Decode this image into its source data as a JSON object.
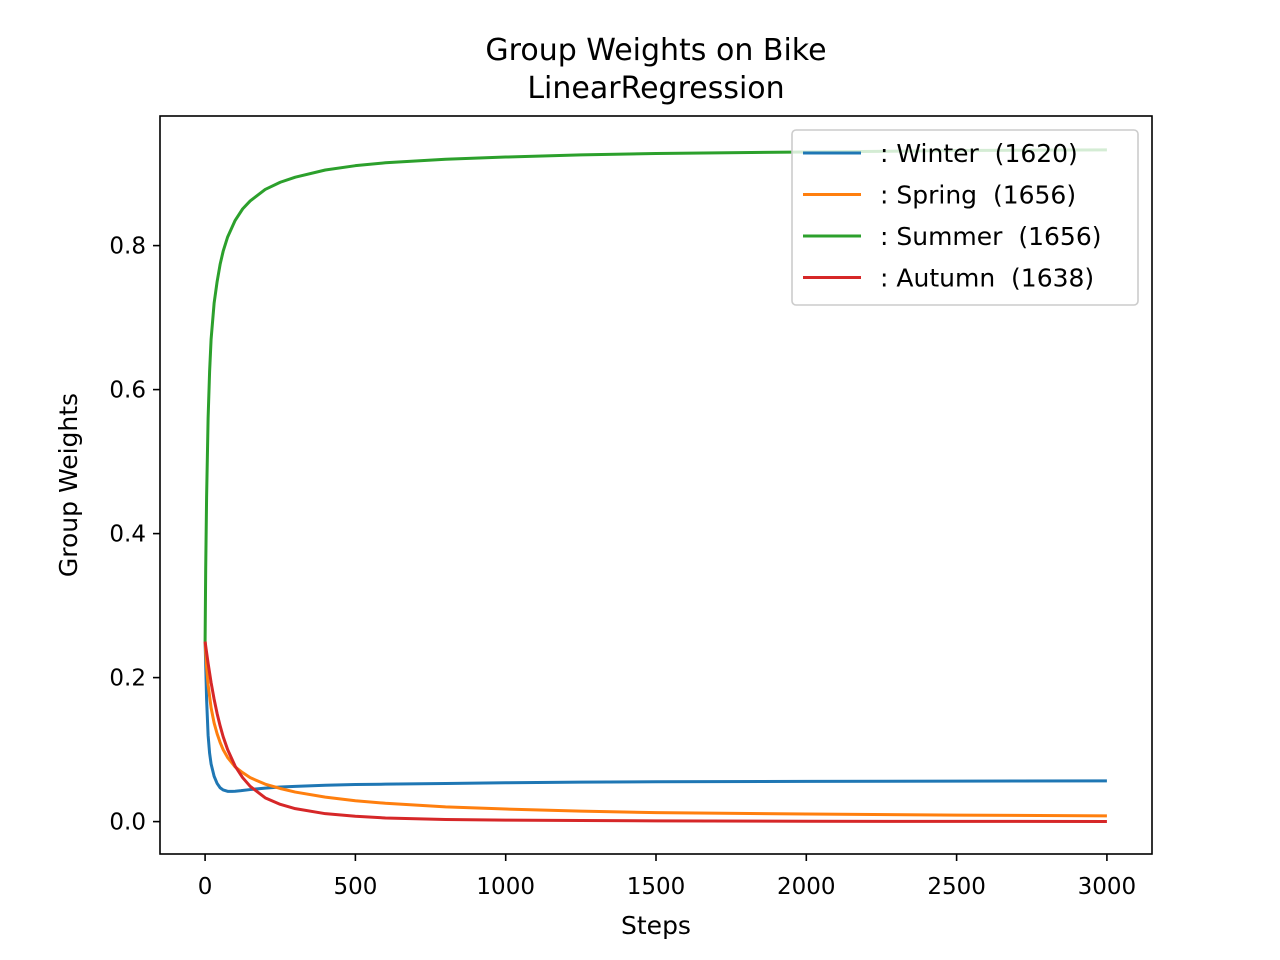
{
  "chart_data": {
    "type": "line",
    "title": "Group Weights on Bike",
    "subtitle": "LinearRegression",
    "xlabel": "Steps",
    "ylabel": "Group Weights",
    "xlim": [
      -150,
      3150
    ],
    "ylim": [
      -0.045,
      0.98
    ],
    "xticks": [
      0,
      500,
      1000,
      1500,
      2000,
      2500,
      3000
    ],
    "yticks": [
      0.0,
      0.2,
      0.4,
      0.6,
      0.8
    ],
    "xtick_labels": [
      "0",
      "500",
      "1000",
      "1500",
      "2000",
      "2500",
      "3000"
    ],
    "ytick_labels": [
      "0.0",
      "0.2",
      "0.4",
      "0.6",
      "0.8"
    ],
    "grid": false,
    "legend_position": "top-right",
    "series": [
      {
        "name": ": Winter  (1620)",
        "color": "#1f77b4",
        "x": [
          0,
          5,
          10,
          15,
          20,
          30,
          40,
          50,
          60,
          75,
          90,
          100,
          120,
          150,
          200,
          250,
          300,
          400,
          500,
          600,
          800,
          1000,
          1250,
          1500,
          2000,
          2500,
          3000
        ],
        "y": [
          0.25,
          0.17,
          0.12,
          0.095,
          0.08,
          0.063,
          0.053,
          0.047,
          0.044,
          0.042,
          0.042,
          0.0422,
          0.043,
          0.0445,
          0.0465,
          0.048,
          0.049,
          0.0505,
          0.0515,
          0.052,
          0.053,
          0.054,
          0.0548,
          0.0553,
          0.0558,
          0.0562,
          0.0565
        ]
      },
      {
        "name": ": Spring  (1656)",
        "color": "#ff7f0e",
        "x": [
          0,
          5,
          10,
          20,
          30,
          40,
          50,
          60,
          75,
          100,
          125,
          150,
          200,
          250,
          300,
          400,
          500,
          600,
          800,
          1000,
          1250,
          1500,
          2000,
          2500,
          3000
        ],
        "y": [
          0.25,
          0.215,
          0.19,
          0.158,
          0.137,
          0.122,
          0.11,
          0.1,
          0.089,
          0.076,
          0.068,
          0.061,
          0.052,
          0.046,
          0.041,
          0.034,
          0.029,
          0.0255,
          0.0205,
          0.0175,
          0.0145,
          0.0125,
          0.0105,
          0.009,
          0.008
        ]
      },
      {
        "name": ": Summer  (1656)",
        "color": "#2ca02c",
        "x": [
          0,
          2,
          5,
          10,
          15,
          20,
          30,
          40,
          50,
          60,
          75,
          100,
          125,
          150,
          200,
          250,
          300,
          400,
          500,
          600,
          800,
          1000,
          1250,
          1500,
          2000,
          2500,
          3000
        ],
        "y": [
          0.25,
          0.35,
          0.45,
          0.56,
          0.625,
          0.67,
          0.72,
          0.75,
          0.774,
          0.792,
          0.812,
          0.835,
          0.851,
          0.862,
          0.878,
          0.888,
          0.895,
          0.905,
          0.911,
          0.915,
          0.92,
          0.923,
          0.926,
          0.928,
          0.93,
          0.932,
          0.933
        ]
      },
      {
        "name": ": Autumn  (1638)",
        "color": "#d62728",
        "x": [
          0,
          5,
          10,
          20,
          30,
          40,
          50,
          60,
          75,
          100,
          125,
          150,
          200,
          250,
          300,
          400,
          500,
          600,
          800,
          1000,
          1250,
          1500,
          2000,
          2500,
          3000
        ],
        "y": [
          0.25,
          0.235,
          0.22,
          0.193,
          0.17,
          0.15,
          0.133,
          0.118,
          0.1,
          0.077,
          0.061,
          0.049,
          0.033,
          0.024,
          0.018,
          0.011,
          0.0075,
          0.005,
          0.003,
          0.002,
          0.0015,
          0.001,
          0.0005,
          0.0003,
          0.0002
        ]
      }
    ]
  }
}
